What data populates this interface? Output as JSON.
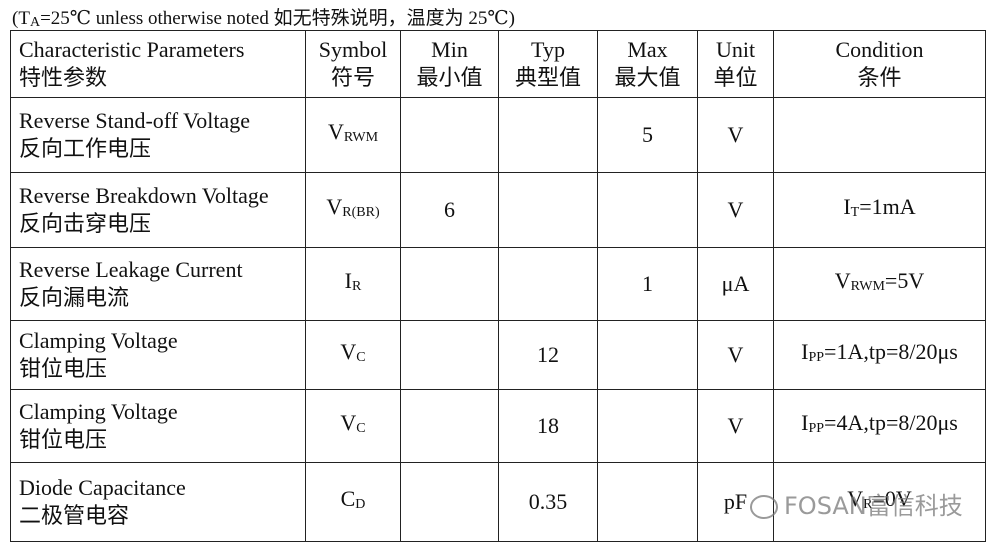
{
  "note": {
    "pre": "(T",
    "sub": "A",
    "rest": "=25℃  unless otherwise noted 如无特殊说明，温度为 25℃)"
  },
  "table": {
    "header": [
      {
        "en": "Characteristic Parameters",
        "zh": "特性参数"
      },
      {
        "en": "Symbol",
        "zh": "符号"
      },
      {
        "en": "Min",
        "zh": "最小值"
      },
      {
        "en": "Typ",
        "zh": "典型值"
      },
      {
        "en": "Max",
        "zh": "最大值"
      },
      {
        "en": "Unit",
        "zh": "单位"
      },
      {
        "en": "Condition",
        "zh": "条件"
      }
    ],
    "rows": [
      {
        "parameter": {
          "en": "Reverse Stand-off Voltage",
          "zh": "反向工作电压"
        },
        "symbol": {
          "main": "V",
          "sub": "RWM"
        },
        "max": 5,
        "unit": "V"
      },
      {
        "parameter": {
          "en": "Reverse Breakdown Voltage",
          "zh": "反向击穿电压"
        },
        "symbol": {
          "main": "V",
          "sub": "R(BR)"
        },
        "min": 6,
        "unit": "V",
        "condition": {
          "main": "I",
          "sub": "T",
          "rest": "=1mA"
        }
      },
      {
        "parameter": {
          "en": "Reverse Leakage Current",
          "zh": "反向漏电流"
        },
        "symbol": {
          "main": "I",
          "sub": "R"
        },
        "max": 1,
        "unit": "μA",
        "condition": {
          "main": "V",
          "sub": "RWM",
          "rest": "=5V"
        }
      },
      {
        "parameter": {
          "en": "Clamping Voltage",
          "zh": "钳位电压"
        },
        "symbol": {
          "main": "V",
          "sub": "C"
        },
        "typ": 12,
        "unit": "V",
        "condition": {
          "main": "I",
          "sub": "PP",
          "rest": "=1A,tp=8/20μs"
        }
      },
      {
        "parameter": {
          "en": "Clamping Voltage",
          "zh": "钳位电压"
        },
        "symbol": {
          "main": "V",
          "sub": "C"
        },
        "typ": 18,
        "unit": "V",
        "condition": {
          "main": "I",
          "sub": "PP",
          "rest": "=4A,tp=8/20μs"
        }
      },
      {
        "parameter": {
          "en": "Diode Capacitance",
          "zh": "二极管电容"
        },
        "symbol": {
          "main": "C",
          "sub": "D"
        },
        "typ": 0.35,
        "unit": "pF",
        "condition": {
          "main": "V",
          "sub": "R",
          "rest": "=0V"
        }
      }
    ]
  },
  "watermark": "FOSAN富信科技"
}
